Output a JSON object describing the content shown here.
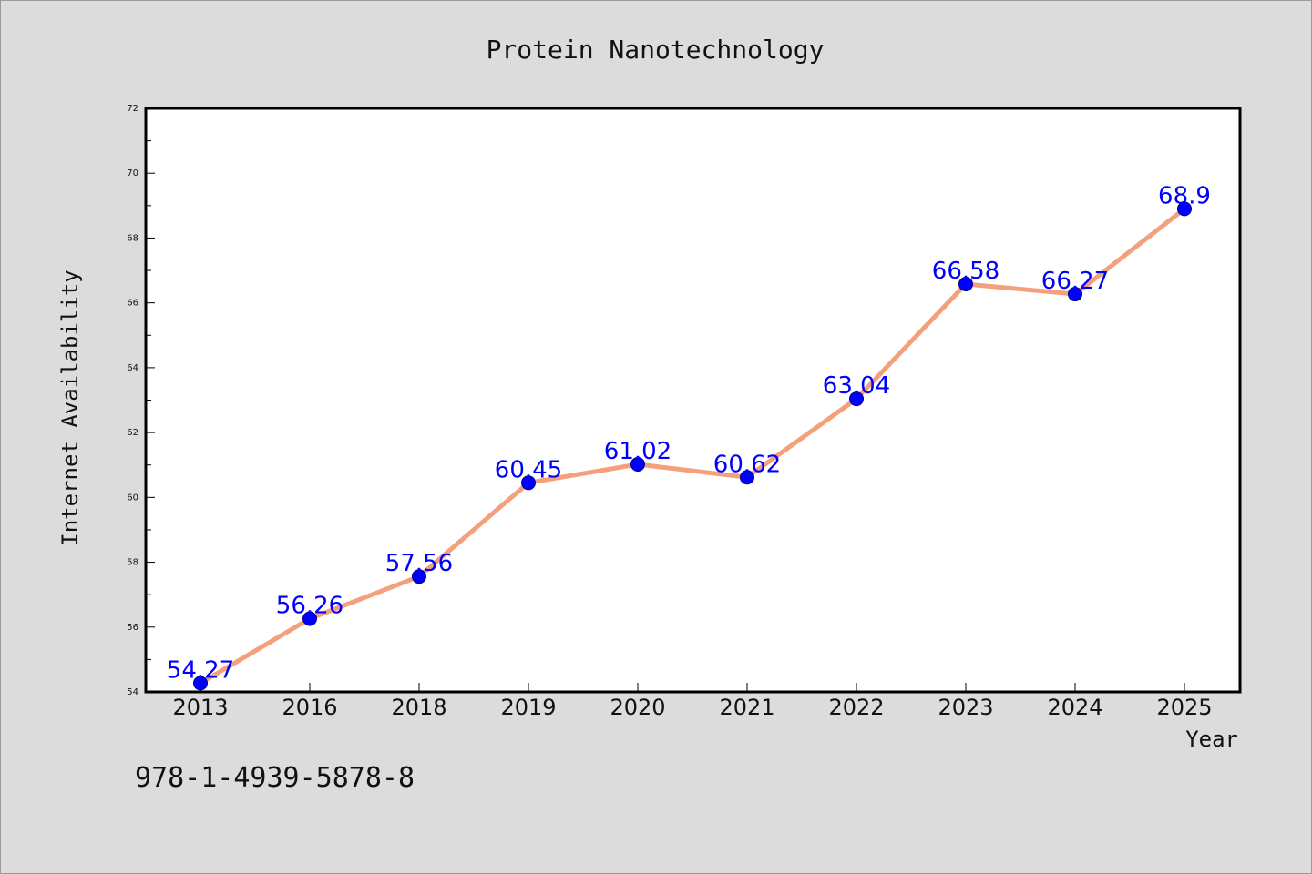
{
  "chart_data": {
    "type": "line",
    "title": "Protein Nanotechnology",
    "xlabel": "Year",
    "ylabel": "Internet Availability",
    "categories": [
      "2013",
      "2016",
      "2018",
      "2019",
      "2020",
      "2021",
      "2022",
      "2023",
      "2024",
      "2025"
    ],
    "series": [
      {
        "values": [
          54.27,
          56.26,
          57.56,
          60.45,
          61.02,
          60.62,
          63.04,
          66.58,
          66.27,
          68.9
        ],
        "labels": [
          "54.27",
          "56.26",
          "57.56",
          "60.45",
          "61.02",
          "60.62",
          "63.04",
          "66.58",
          "66.27",
          "68.9"
        ],
        "line_color": "#f4a07c",
        "marker_color": "#0000ff"
      }
    ],
    "ylim": [
      54,
      72
    ],
    "yticks": [
      "54",
      "56",
      "58",
      "60",
      "62",
      "64",
      "66",
      "68",
      "70",
      "72"
    ],
    "grid": false,
    "legend": "none"
  },
  "annotation": "978-1-4939-5878-8"
}
